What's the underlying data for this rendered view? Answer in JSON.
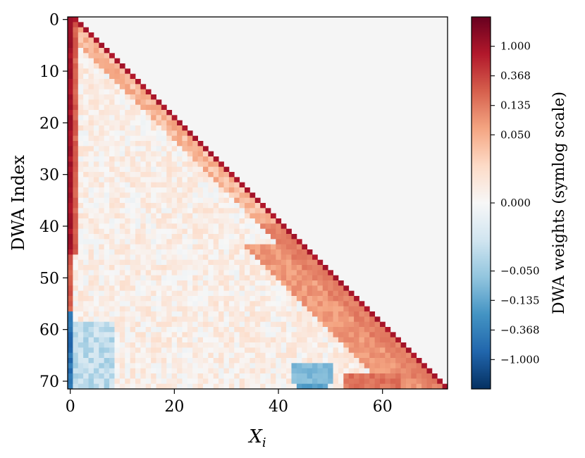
{
  "chart_data": {
    "type": "heatmap",
    "title": "",
    "xlabel": "X",
    "xlabel_subscript": "i",
    "ylabel": "DWA Index",
    "colorbar_label": "DWA weights (symlog scale)",
    "colorbar_scale": "symlog",
    "colormap": "RdBu_r",
    "rows": 72,
    "cols": 73,
    "xlim": [
      -0.5,
      72.5
    ],
    "ylim": [
      71.5,
      -0.5
    ],
    "x_ticks": [
      0,
      20,
      40,
      60
    ],
    "y_ticks": [
      0,
      10,
      20,
      30,
      40,
      50,
      60,
      70
    ],
    "colorbar_ticks": [
      {
        "value": 1.0,
        "label": "1.000"
      },
      {
        "value": 0.368,
        "label": "0.368"
      },
      {
        "value": 0.135,
        "label": "0.135"
      },
      {
        "value": 0.05,
        "label": "0.050"
      },
      {
        "value": 0.0,
        "label": "0.000"
      },
      {
        "value": -0.05,
        "label": "−0.050"
      },
      {
        "value": -0.135,
        "label": "−0.135"
      },
      {
        "value": -0.368,
        "label": "−0.368"
      },
      {
        "value": -1.0,
        "label": "−1.000"
      }
    ],
    "colorbar_range": [
      -2.7,
      2.7
    ],
    "upper_triangle": "masked (light gray)",
    "structure": {
      "diagonal_weight": 0.9,
      "first_column_rows_0_45": 1.0,
      "first_column_rows_46_56": 0.25,
      "first_column_rows_57_71": -0.6,
      "near_diagonal_rows_40_71": 0.12,
      "last_row_cols_44_49": -0.15,
      "last_row_cols_53_63": 0.18,
      "interior_typical": 0.02
    }
  },
  "colors": {
    "masked": "#f5f5f5",
    "strong_red": "#b2182b",
    "strong_blue": "#2166ac",
    "axis": "#000000"
  }
}
